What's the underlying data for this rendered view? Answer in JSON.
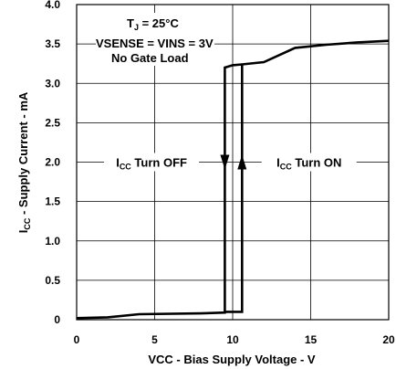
{
  "chart_data": {
    "type": "line",
    "title": "",
    "xlabel": "VCC - Bias Supply Voltage - V",
    "ylabel_main": "I",
    "ylabel_sub": "CC",
    "ylabel_rest": " - Supply Current - mA",
    "xlim": [
      0,
      20
    ],
    "ylim": [
      0,
      4.0
    ],
    "x_ticks": [
      0,
      5,
      10,
      15,
      20
    ],
    "x_tick_labels": [
      "0",
      "5",
      "10",
      "15",
      "20"
    ],
    "y_ticks": [
      0,
      0.5,
      1.0,
      1.5,
      2.0,
      2.5,
      3.0,
      3.5,
      4.0
    ],
    "y_tick_labels": [
      "0",
      "0.5",
      "1.0",
      "1.5",
      "2.0",
      "2.5",
      "3.0",
      "3.5",
      "4.0"
    ],
    "grid": true,
    "conditions": {
      "tj_main": "T",
      "tj_sub": "J",
      "tj_rest": " = 25°C",
      "line2": "VSENSE = VINS = 3V",
      "line3": "No Gate Load"
    },
    "series": [
      {
        "values": [
          [
            0,
            0.02
          ],
          [
            2,
            0.03
          ],
          [
            4,
            0.07
          ],
          [
            8,
            0.08
          ],
          [
            9.5,
            0.09
          ],
          [
            9.5,
            3.2
          ],
          [
            10,
            3.23
          ],
          [
            10.6,
            3.24
          ],
          [
            12,
            3.27
          ],
          [
            14,
            3.45
          ],
          [
            16,
            3.49
          ],
          [
            18,
            3.52
          ],
          [
            20,
            3.54
          ]
        ]
      }
    ],
    "hysteresis": {
      "turn_on_x": 10.6,
      "turn_off_x": 9.5,
      "low_current": 0.1,
      "high_current": 3.24
    },
    "annotations": [
      {
        "main": "I",
        "sub": "CC",
        "rest": " Turn OFF",
        "x": 4.8,
        "y": 2.0
      },
      {
        "main": "I",
        "sub": "CC",
        "rest": " Turn ON",
        "x": 14.9,
        "y": 2.0
      }
    ]
  }
}
